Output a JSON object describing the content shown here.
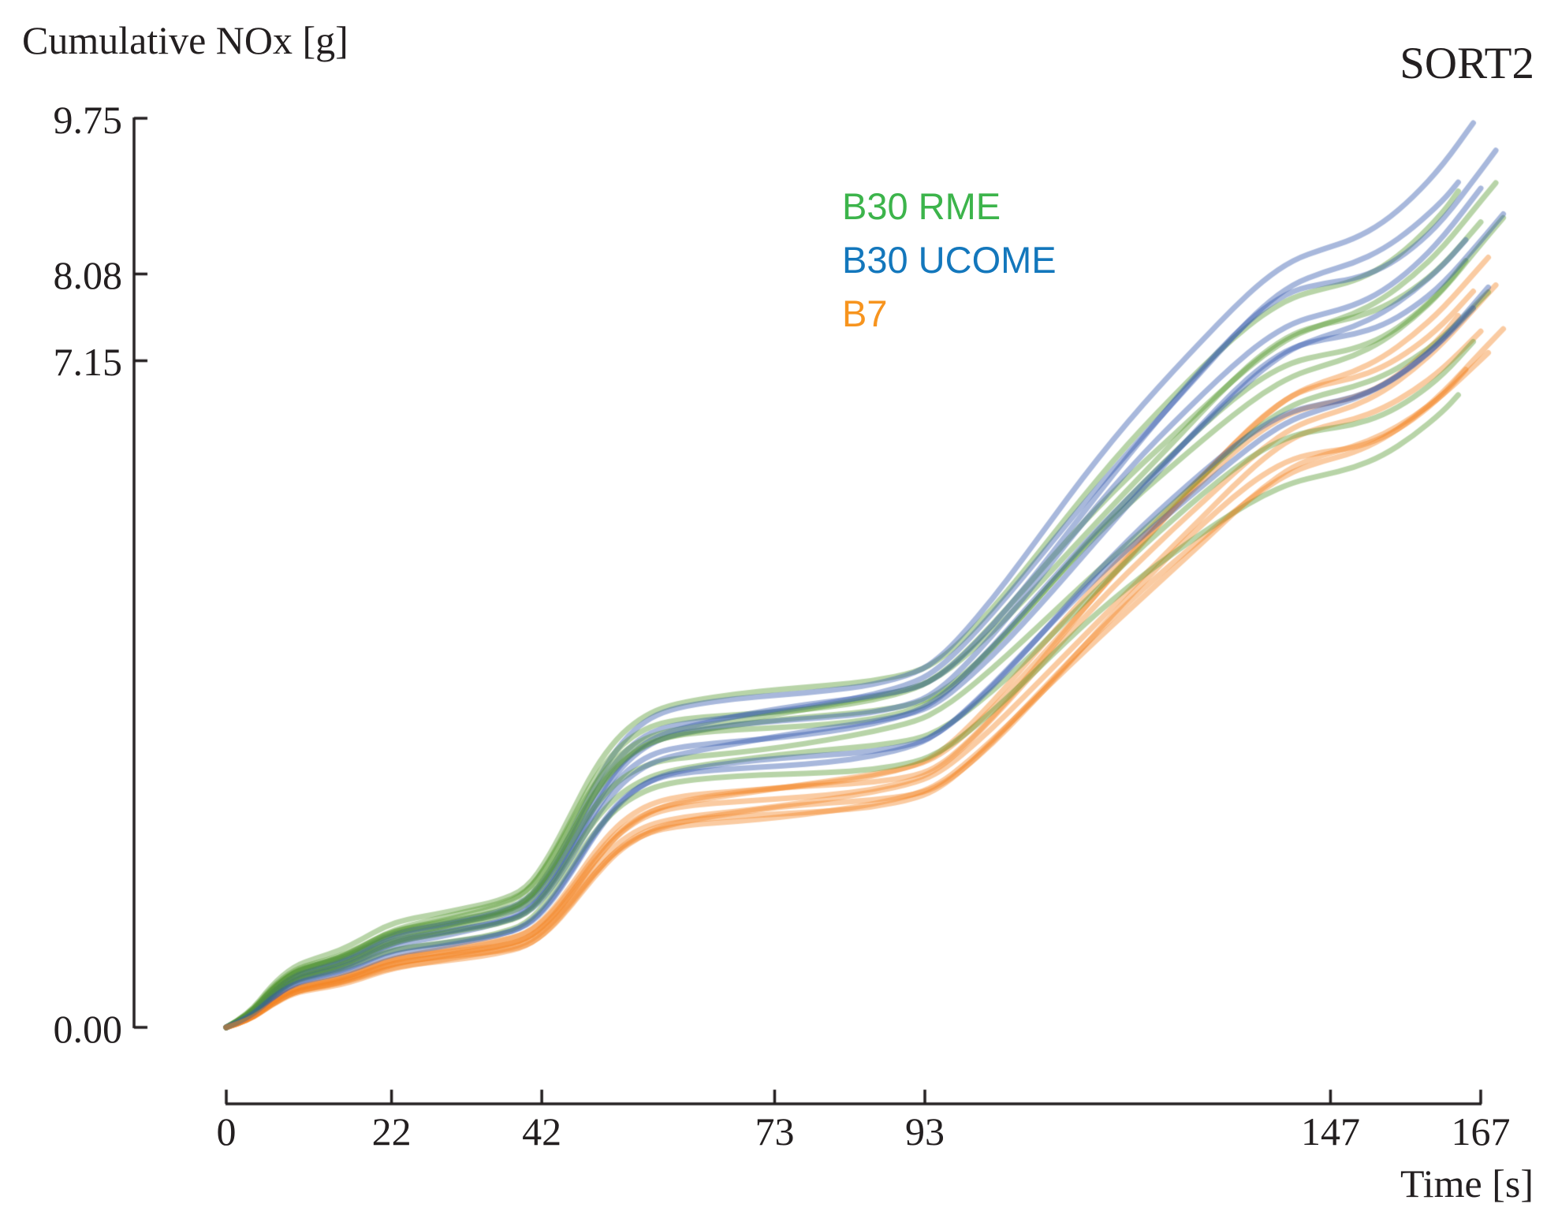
{
  "header": {
    "title": "SORT2",
    "y_axis_title": "Cumulative NOx [g]",
    "x_axis_title": "Time [s]"
  },
  "legend": {
    "items": [
      {
        "label": "B30 RME",
        "color": "#3cb44b"
      },
      {
        "label": "B30 UCOME",
        "color": "#1377bc"
      },
      {
        "label": "B7",
        "color": "#f7941e"
      }
    ]
  },
  "colors": {
    "axis": "#231f20",
    "text": "#231f20",
    "background": "#ffffff"
  },
  "chart_data": {
    "type": "line",
    "title": "SORT2",
    "xlabel": "Time [s]",
    "ylabel": "Cumulative NOx [g]",
    "xlim": [
      0,
      167
    ],
    "ylim": [
      0,
      9.75
    ],
    "grid": false,
    "legend_position": "upper-middle-right",
    "xticks": {
      "values": [
        0,
        22,
        42,
        73,
        93,
        147,
        167
      ],
      "labels": [
        "0",
        "22",
        "42",
        "73",
        "93",
        "147",
        "167"
      ]
    },
    "yticks": {
      "values": [
        0.0,
        7.15,
        8.08,
        9.75
      ],
      "labels": [
        "0.00",
        "7.15",
        "8.08",
        "9.75"
      ]
    },
    "profile_t": [
      0,
      3,
      6,
      9,
      12,
      15,
      18,
      21,
      24,
      28,
      32,
      36,
      40,
      43,
      46,
      49,
      52,
      55,
      58,
      62,
      68,
      74,
      80,
      86,
      92,
      95,
      98,
      102,
      106,
      110,
      114,
      118,
      122,
      126,
      130,
      134,
      138,
      142,
      146,
      150,
      154,
      158,
      162,
      167
    ],
    "series": [
      {
        "name": "B30 RME",
        "legend_color": "#3cb44b",
        "line_color": "rgba(86,152,48,0.42)",
        "profile_f": [
          0,
          0.015,
          0.048,
          0.07,
          0.079,
          0.087,
          0.1,
          0.115,
          0.124,
          0.131,
          0.139,
          0.147,
          0.162,
          0.2,
          0.25,
          0.3,
          0.335,
          0.356,
          0.368,
          0.375,
          0.382,
          0.388,
          0.394,
          0.401,
          0.413,
          0.428,
          0.45,
          0.486,
          0.526,
          0.568,
          0.61,
          0.65,
          0.688,
          0.724,
          0.76,
          0.794,
          0.824,
          0.846,
          0.857,
          0.866,
          0.882,
          0.908,
          0.942,
          1.0
        ],
        "runs_final_nox_g": [
          9.29,
          8.81,
          8.71,
          8.44,
          8.33,
          7.84,
          7.48,
          6.98
        ]
      },
      {
        "name": "B30 UCOME",
        "legend_color": "#1377bc",
        "line_color": "rgba(48,86,171,0.42)",
        "profile_f": [
          0,
          0.012,
          0.04,
          0.06,
          0.068,
          0.075,
          0.086,
          0.1,
          0.108,
          0.114,
          0.121,
          0.128,
          0.14,
          0.17,
          0.215,
          0.265,
          0.305,
          0.33,
          0.344,
          0.352,
          0.36,
          0.366,
          0.372,
          0.379,
          0.392,
          0.408,
          0.432,
          0.47,
          0.512,
          0.556,
          0.6,
          0.642,
          0.682,
          0.72,
          0.757,
          0.793,
          0.825,
          0.848,
          0.859,
          0.868,
          0.884,
          0.91,
          0.944,
          1.0
        ],
        "runs_final_nox_g": [
          9.76,
          9.37,
          9.26,
          8.96,
          8.6,
          8.52,
          7.83,
          7.74
        ]
      },
      {
        "name": "B7",
        "legend_color": "#f7941e",
        "line_color": "rgba(243,131,33,0.42)",
        "profile_f": [
          0,
          0.01,
          0.034,
          0.052,
          0.059,
          0.065,
          0.075,
          0.087,
          0.094,
          0.1,
          0.106,
          0.112,
          0.122,
          0.147,
          0.185,
          0.228,
          0.263,
          0.285,
          0.298,
          0.306,
          0.313,
          0.319,
          0.325,
          0.332,
          0.345,
          0.36,
          0.385,
          0.425,
          0.47,
          0.516,
          0.562,
          0.607,
          0.65,
          0.692,
          0.732,
          0.772,
          0.808,
          0.836,
          0.85,
          0.86,
          0.878,
          0.906,
          0.942,
          1.0
        ],
        "runs_final_nox_g": [
          8.14,
          8.05,
          7.93,
          7.74,
          7.51,
          7.28,
          7.19,
          7.17
        ]
      }
    ]
  }
}
